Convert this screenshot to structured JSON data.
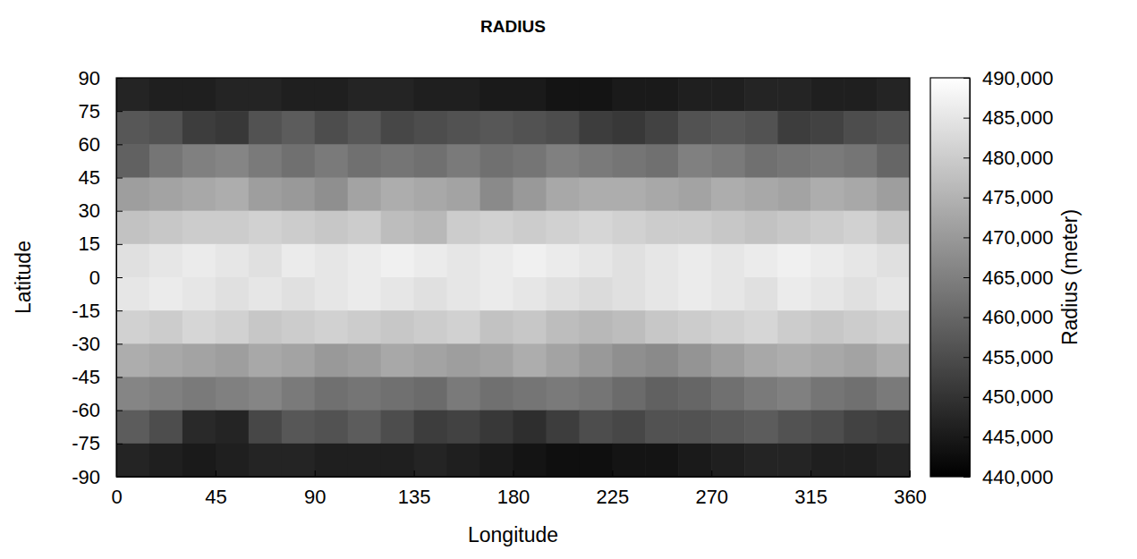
{
  "chart_data": {
    "type": "heatmap",
    "title": "RADIUS",
    "x_label": "Longitude",
    "y_label": "Latitude",
    "colorbar_label": "Radius (meter)",
    "xlim": [
      0,
      360
    ],
    "ylim": [
      -90,
      90
    ],
    "xticks": [
      0,
      45,
      90,
      135,
      180,
      225,
      270,
      315,
      360
    ],
    "yticks": [
      -90,
      -75,
      -60,
      -45,
      -30,
      -15,
      0,
      15,
      30,
      45,
      60,
      75,
      90
    ],
    "x": [
      7.5,
      22.5,
      37.5,
      52.5,
      67.5,
      82.5,
      97.5,
      112.5,
      127.5,
      142.5,
      157.5,
      172.5,
      187.5,
      202.5,
      217.5,
      232.5,
      247.5,
      262.5,
      277.5,
      292.5,
      307.5,
      322.5,
      337.5,
      352.5
    ],
    "y": [
      82.5,
      67.5,
      52.5,
      37.5,
      22.5,
      7.5,
      -7.5,
      -22.5,
      -37.5,
      -52.5,
      -67.5,
      -82.5
    ],
    "values": [
      [
        447000,
        446000,
        446000,
        447000,
        447000,
        446000,
        446000,
        447000,
        447000,
        446000,
        446000,
        445000,
        445000,
        444000,
        444000,
        445000,
        445000,
        446000,
        446000,
        447000,
        447000,
        446000,
        446000,
        447000
      ],
      [
        457000,
        456000,
        452000,
        451000,
        456000,
        458000,
        455000,
        457000,
        454000,
        455000,
        456000,
        457000,
        456000,
        455000,
        452000,
        451000,
        453000,
        456000,
        457000,
        456000,
        452000,
        453000,
        455000,
        456000
      ],
      [
        459000,
        463000,
        465000,
        466000,
        464000,
        462000,
        464000,
        462000,
        463000,
        462000,
        464000,
        462000,
        463000,
        465000,
        464000,
        463000,
        462000,
        465000,
        464000,
        462000,
        463000,
        464000,
        463000,
        460000
      ],
      [
        471000,
        472000,
        473000,
        474000,
        471000,
        470000,
        468000,
        472000,
        474000,
        473000,
        472000,
        467000,
        470000,
        473000,
        474000,
        474000,
        473000,
        472000,
        474000,
        473000,
        472000,
        474000,
        473000,
        471000
      ],
      [
        478000,
        479000,
        480000,
        480000,
        481000,
        480000,
        479000,
        480000,
        477000,
        476000,
        480000,
        481000,
        480000,
        481000,
        482000,
        481000,
        480000,
        480000,
        479000,
        478000,
        479000,
        480000,
        481000,
        479000
      ],
      [
        484000,
        485000,
        486000,
        485000,
        484000,
        486000,
        485000,
        486000,
        487000,
        486000,
        485000,
        486000,
        487000,
        486000,
        485000,
        484000,
        485000,
        486000,
        485000,
        486000,
        487000,
        486000,
        485000,
        484000
      ],
      [
        485000,
        486000,
        485000,
        484000,
        485000,
        484000,
        485000,
        486000,
        485000,
        484000,
        485000,
        486000,
        485000,
        484000,
        483000,
        484000,
        485000,
        486000,
        485000,
        484000,
        486000,
        485000,
        484000,
        485000
      ],
      [
        481000,
        480000,
        482000,
        481000,
        479000,
        480000,
        481000,
        480000,
        479000,
        480000,
        481000,
        478000,
        479000,
        477000,
        476000,
        477000,
        479000,
        480000,
        481000,
        482000,
        480000,
        479000,
        480000,
        481000
      ],
      [
        474000,
        473000,
        472000,
        471000,
        473000,
        472000,
        470000,
        471000,
        473000,
        472000,
        471000,
        472000,
        474000,
        472000,
        470000,
        468000,
        467000,
        469000,
        471000,
        473000,
        474000,
        473000,
        472000,
        474000
      ],
      [
        466000,
        465000,
        464000,
        465000,
        466000,
        464000,
        462000,
        463000,
        462000,
        461000,
        464000,
        462000,
        463000,
        464000,
        463000,
        461000,
        459000,
        460000,
        462000,
        464000,
        465000,
        463000,
        462000,
        464000
      ],
      [
        458000,
        455000,
        448000,
        447000,
        454000,
        457000,
        456000,
        458000,
        455000,
        452000,
        453000,
        451000,
        449000,
        452000,
        455000,
        454000,
        456000,
        456000,
        457000,
        458000,
        456000,
        455000,
        453000,
        452000
      ],
      [
        447000,
        446000,
        445000,
        446000,
        447000,
        447000,
        446000,
        446000,
        446000,
        447000,
        446000,
        445000,
        444000,
        443000,
        443000,
        444000,
        444000,
        445000,
        446000,
        447000,
        447000,
        446000,
        446000,
        447000
      ]
    ],
    "color_range": [
      440000,
      490000
    ],
    "color_ticks": [
      {
        "value": 440000,
        "label": "440,000"
      },
      {
        "value": 445000,
        "label": "445,000"
      },
      {
        "value": 450000,
        "label": "450,000"
      },
      {
        "value": 455000,
        "label": "455,000"
      },
      {
        "value": 460000,
        "label": "460,000"
      },
      {
        "value": 465000,
        "label": "465,000"
      },
      {
        "value": 470000,
        "label": "470,000"
      },
      {
        "value": 475000,
        "label": "475,000"
      },
      {
        "value": 480000,
        "label": "480,000"
      },
      {
        "value": 485000,
        "label": "485,000"
      },
      {
        "value": 490000,
        "label": "490,000"
      }
    ]
  }
}
